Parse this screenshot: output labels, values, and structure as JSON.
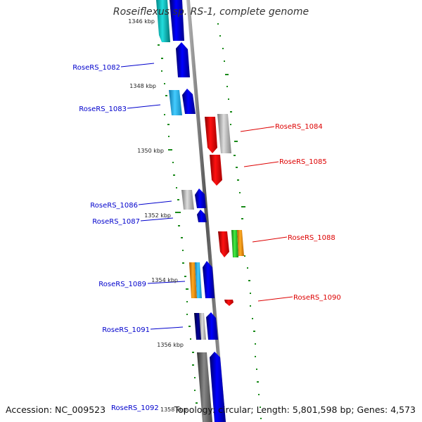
{
  "title": "Roseiflexus sp. RS-1, complete genome",
  "accession_text": "Accession: NC_009523",
  "topology_text": "Topology: circular; Length: 5,801,598 bp; Genes: 4,573",
  "kbp_labels": [
    "1346 kbp",
    "1348 kbp",
    "1350 kbp",
    "1352 kbp",
    "1354 kbp",
    "1356 kbp",
    "1358 kbp"
  ],
  "genes_left": [
    "RoseRS_1082",
    "RoseRS_1083",
    "RoseRS_1086",
    "RoseRS_1087",
    "RoseRS_1089",
    "RoseRS_1091",
    "RoseRS_1092"
  ],
  "genes_right": [
    "RoseRS_1084",
    "RoseRS_1085",
    "RoseRS_1088",
    "RoseRS_1090"
  ],
  "colors": {
    "left_label": "#0000cc",
    "right_label": "#dd0000",
    "backbone": "#888888",
    "gc_tick": "#1a8a1a",
    "blue": "#0000ee",
    "cyan": "#00cccc",
    "light_blue": "#33bbee",
    "gray": "#b0b0b0",
    "red": "#ee0000",
    "orange": "#ff8800",
    "green": "#22bb22",
    "navy": "#000088",
    "dark_gray": "#555555"
  }
}
